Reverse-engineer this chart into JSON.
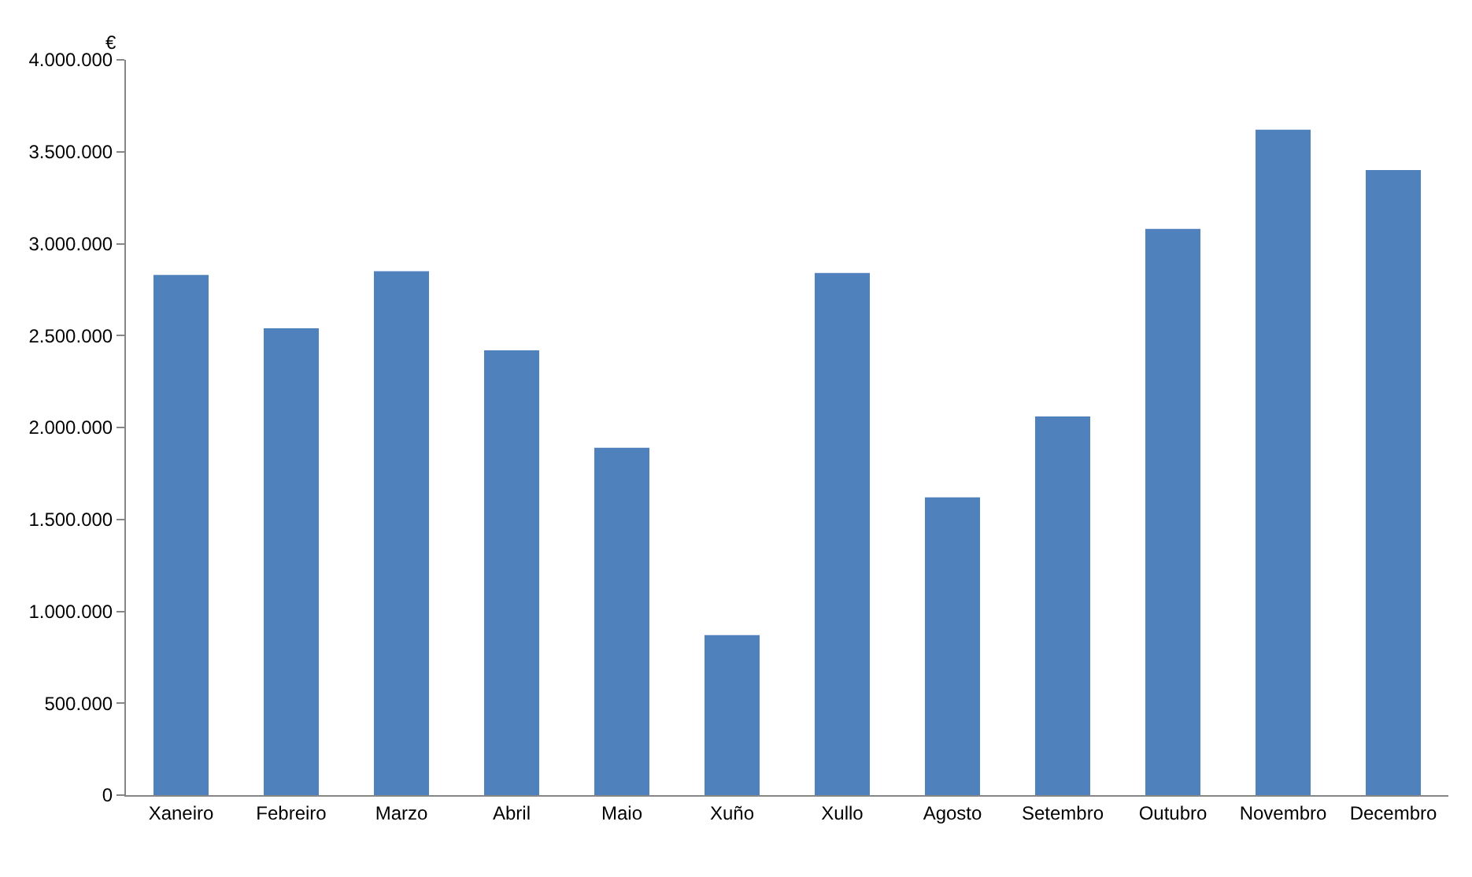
{
  "chart_data": {
    "type": "bar",
    "ylabel": "€",
    "categories": [
      "Xaneiro",
      "Febreiro",
      "Marzo",
      "Abril",
      "Maio",
      "Xuño",
      "Xullo",
      "Agosto",
      "Setembro",
      "Outubro",
      "Novembro",
      "Decembro"
    ],
    "values": [
      2830000,
      2540000,
      2850000,
      2420000,
      1890000,
      870000,
      2840000,
      1620000,
      2060000,
      3080000,
      3620000,
      3400000
    ],
    "color": "#4f81bd",
    "ylim": [
      0,
      4000000
    ],
    "yticks": [
      {
        "value": 0,
        "label": "0"
      },
      {
        "value": 500000,
        "label": "500.000"
      },
      {
        "value": 1000000,
        "label": "1.000.000"
      },
      {
        "value": 1500000,
        "label": "1.500.000"
      },
      {
        "value": 2000000,
        "label": "2.000.000"
      },
      {
        "value": 2500000,
        "label": "2.500.000"
      },
      {
        "value": 3000000,
        "label": "3.000.000"
      },
      {
        "value": 3500000,
        "label": "3.500.000"
      },
      {
        "value": 4000000,
        "label": "4.000.000"
      }
    ],
    "grid": false
  }
}
